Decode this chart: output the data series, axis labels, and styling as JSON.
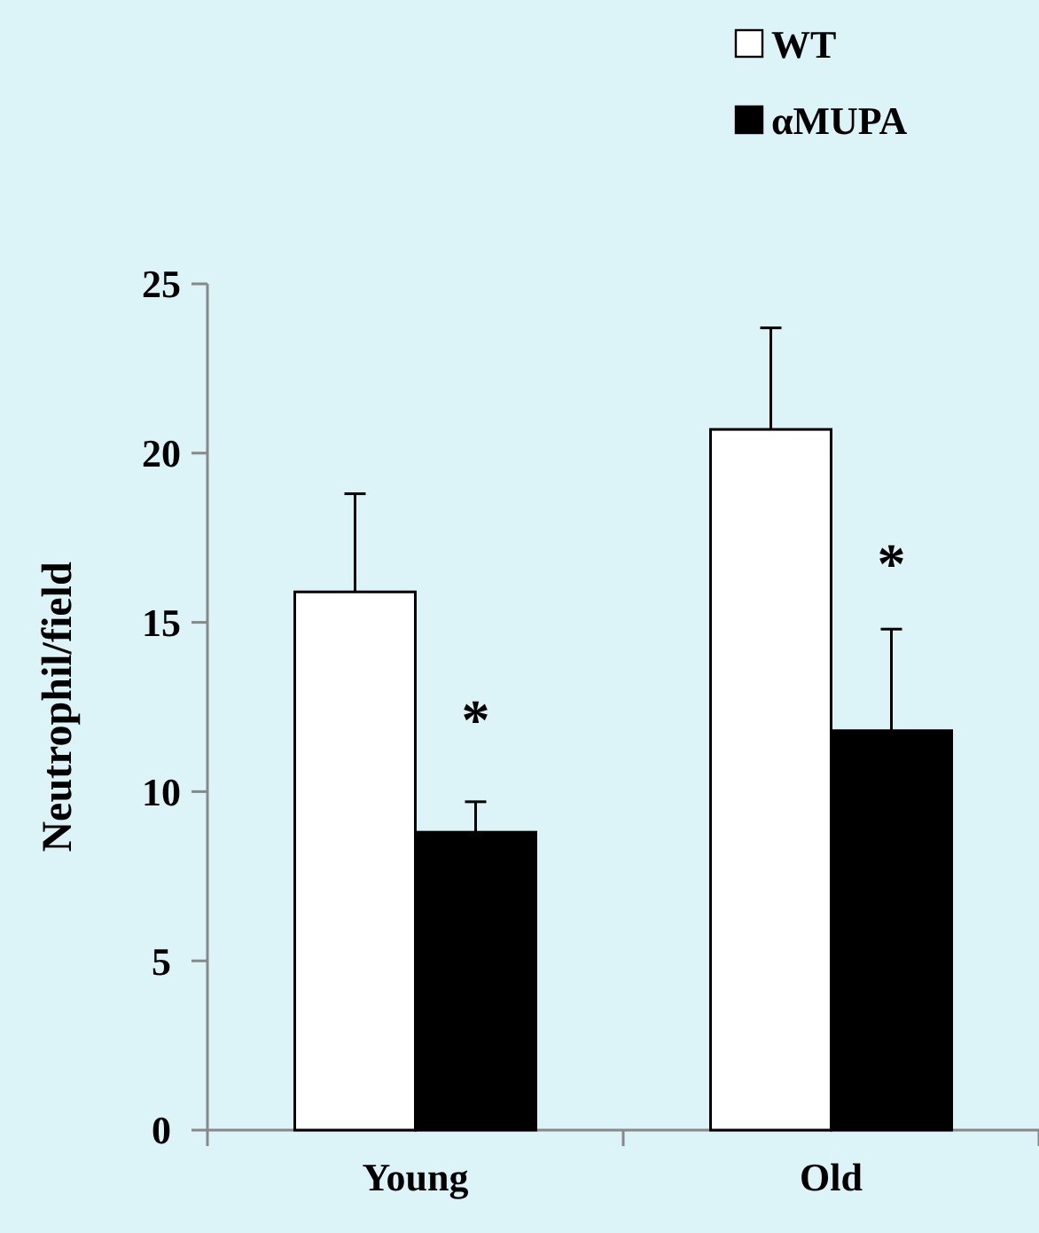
{
  "chart_data": {
    "type": "bar",
    "ylabel": "Neutrophil/field",
    "categories": [
      "Young",
      "Old"
    ],
    "series": [
      {
        "name": "WT",
        "color": "#ffffff",
        "values": [
          15.9,
          20.7
        ],
        "errors": [
          2.9,
          3.0
        ]
      },
      {
        "name": "αMUPA",
        "color": "#000000",
        "values": [
          8.8,
          11.8
        ],
        "errors": [
          0.9,
          3.0
        ]
      }
    ],
    "ylim": [
      0,
      25
    ],
    "yticks": [
      0,
      5,
      10,
      15,
      20,
      25
    ],
    "grid": false,
    "legend": "top right",
    "annotations": [
      {
        "text": "*",
        "x": "Young",
        "y": 12.4
      },
      {
        "text": "*",
        "x": "Old",
        "y": 17
      }
    ]
  }
}
